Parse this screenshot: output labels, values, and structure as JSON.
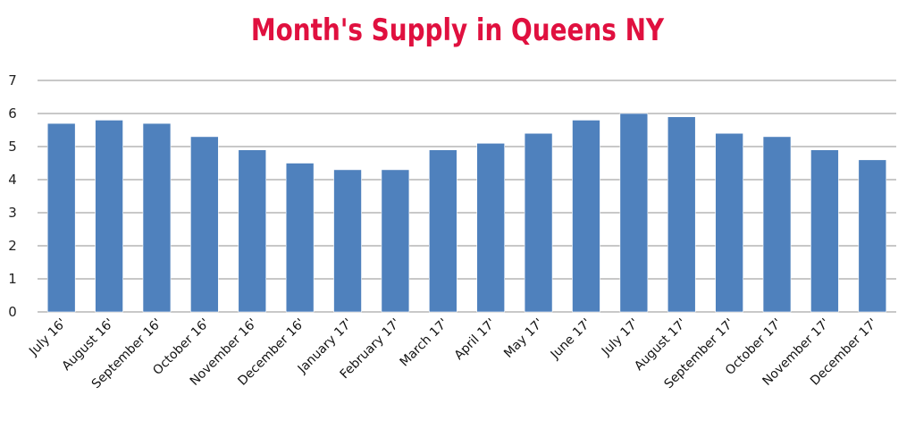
{
  "chart_data": {
    "type": "bar",
    "title": "Month's Supply in Queens NY",
    "xlabel": "",
    "ylabel": "",
    "ylim": [
      0,
      7
    ],
    "yticks": [
      "0",
      "1",
      "2",
      "3",
      "4",
      "5",
      "6",
      "7"
    ],
    "grid": true,
    "categories": [
      "July 16'",
      "August 16'",
      "September 16'",
      "October 16'",
      "November 16'",
      "December 16'",
      "January 17'",
      "February 17'",
      "March 17'",
      "April 17'",
      "May 17'",
      "June 17'",
      "July 17'",
      "August 17'",
      "September 17'",
      "October 17'",
      "November 17'",
      "December 17'"
    ],
    "values": [
      5.7,
      5.8,
      5.7,
      5.3,
      4.9,
      4.5,
      4.3,
      4.3,
      4.9,
      5.1,
      5.4,
      5.8,
      6.0,
      5.9,
      5.4,
      5.3,
      4.9,
      4.6
    ],
    "colors": {
      "bar": "#4f81bd",
      "title": "#e0103f",
      "grid": "#a6a6a6"
    }
  }
}
